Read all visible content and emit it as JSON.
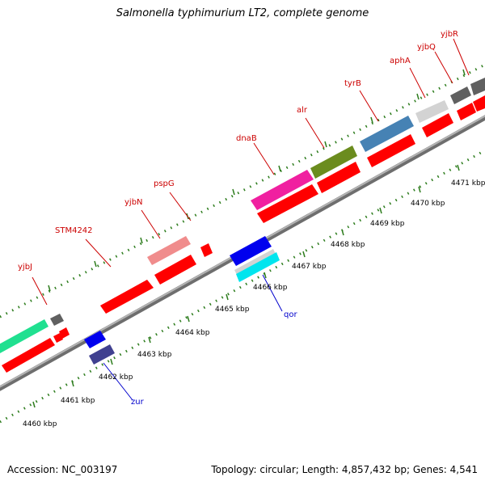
{
  "title": "Salmonella typhimurium LT2, complete genome",
  "footer": {
    "accession": "Accession: NC_003197",
    "summary": "Topology: circular; Length: 4,857,432 bp; Genes: 4,541"
  },
  "colors": {
    "backbone": "#8c8c8c",
    "tick": "#2e7d1e",
    "upper_label": "#cc0000",
    "lower_label": "#0000cc",
    "kbp_label": "#000000"
  },
  "scale_labels": [
    "4460 kbp",
    "4461 kbp",
    "4462 kbp",
    "4463 kbp",
    "4464 kbp",
    "4465 kbp",
    "4466 kbp",
    "4467 kbp",
    "4468 kbp",
    "4469 kbp",
    "4470 kbp",
    "4471 kbp"
  ],
  "upper_labels": [
    {
      "text": "yjbJ",
      "color": "#cc0000"
    },
    {
      "text": "STM4242",
      "color": "#cc0000"
    },
    {
      "text": "yjbN",
      "color": "#cc0000"
    },
    {
      "text": "pspG",
      "color": "#cc0000"
    },
    {
      "text": "dnaB",
      "color": "#cc0000"
    },
    {
      "text": "alr",
      "color": "#cc0000"
    },
    {
      "text": "tyrB",
      "color": "#cc0000"
    },
    {
      "text": "aphA",
      "color": "#cc0000"
    },
    {
      "text": "yjbQ",
      "color": "#cc0000"
    },
    {
      "text": "yjbR",
      "color": "#cc0000"
    }
  ],
  "lower_labels": [
    {
      "text": "zur",
      "color": "#0000cc"
    },
    {
      "text": "qor",
      "color": "#0000cc"
    }
  ]
}
